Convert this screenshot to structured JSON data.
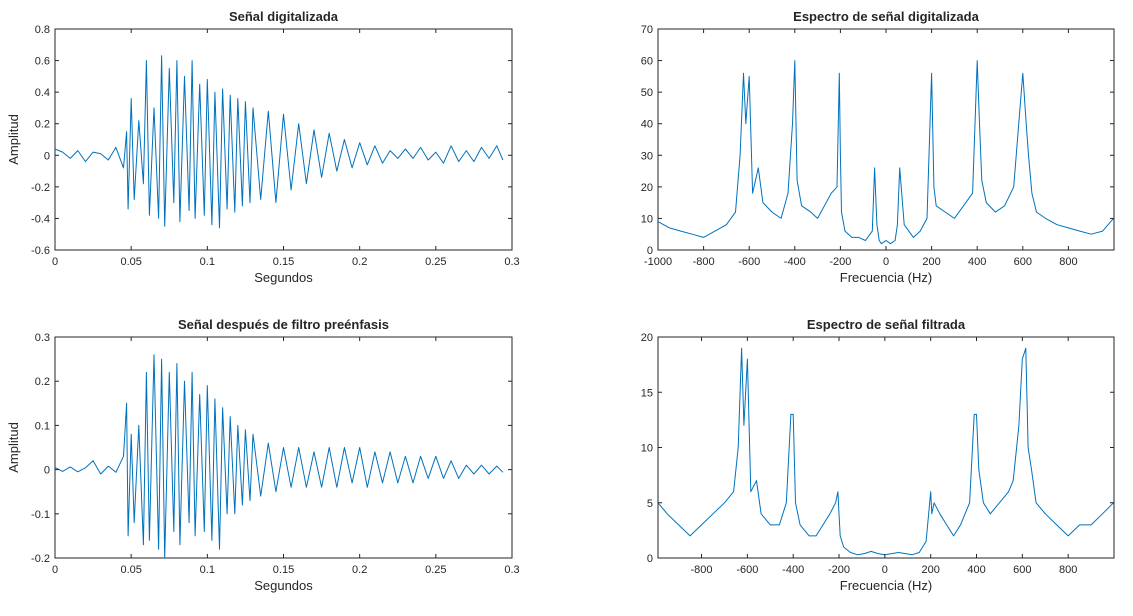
{
  "colors": {
    "line": "#0072BD",
    "axis": "#262626",
    "background": "#ffffff"
  },
  "chart_data": [
    {
      "id": "signal",
      "type": "line",
      "title": "Señal digitalizada",
      "xlabel": "Segundos",
      "ylabel": "Amplitud",
      "xlim": [
        0,
        0.3
      ],
      "ylim": [
        -0.6,
        0.8
      ],
      "xticks": [
        0,
        0.05,
        0.1,
        0.15,
        0.2,
        0.25,
        0.3
      ],
      "xticklabels": [
        "0",
        "0.05",
        "0.1",
        "0.15",
        "0.2",
        "0.25",
        "0.3"
      ],
      "yticks": [
        -0.6,
        -0.4,
        -0.2,
        0,
        0.2,
        0.4,
        0.6,
        0.8
      ],
      "yticklabels": [
        "-0.6",
        "-0.4",
        "-0.2",
        "0",
        "0.2",
        "0.4",
        "0.6",
        "0.8"
      ],
      "series": [
        {
          "x": [
            0,
            0.005,
            0.01,
            0.015,
            0.02,
            0.025,
            0.03,
            0.035,
            0.04,
            0.045,
            0.047,
            0.048,
            0.05,
            0.052,
            0.055,
            0.058,
            0.06,
            0.062,
            0.065,
            0.068,
            0.07,
            0.072,
            0.075,
            0.078,
            0.08,
            0.082,
            0.085,
            0.088,
            0.09,
            0.092,
            0.095,
            0.098,
            0.1,
            0.103,
            0.105,
            0.108,
            0.11,
            0.113,
            0.115,
            0.118,
            0.12,
            0.123,
            0.125,
            0.128,
            0.13,
            0.135,
            0.14,
            0.145,
            0.15,
            0.155,
            0.16,
            0.165,
            0.17,
            0.175,
            0.18,
            0.185,
            0.19,
            0.195,
            0.2,
            0.205,
            0.21,
            0.215,
            0.22,
            0.225,
            0.23,
            0.235,
            0.24,
            0.245,
            0.25,
            0.255,
            0.26,
            0.265,
            0.27,
            0.275,
            0.28,
            0.285,
            0.29,
            0.294
          ],
          "y": [
            0.04,
            0.02,
            -0.02,
            0.03,
            -0.04,
            0.02,
            0.01,
            -0.03,
            0.05,
            -0.08,
            0.15,
            -0.34,
            0.36,
            -0.28,
            0.22,
            -0.18,
            0.6,
            -0.38,
            0.3,
            -0.4,
            0.63,
            -0.45,
            0.55,
            -0.3,
            0.6,
            -0.42,
            0.5,
            -0.35,
            0.6,
            -0.4,
            0.45,
            -0.38,
            0.48,
            -0.44,
            0.4,
            -0.46,
            0.42,
            -0.34,
            0.38,
            -0.36,
            0.36,
            -0.32,
            0.34,
            -0.3,
            0.3,
            -0.28,
            0.28,
            -0.3,
            0.26,
            -0.22,
            0.2,
            -0.18,
            0.16,
            -0.14,
            0.14,
            -0.1,
            0.1,
            -0.08,
            0.08,
            -0.06,
            0.06,
            -0.05,
            0.03,
            -0.02,
            0.04,
            -0.02,
            0.05,
            -0.03,
            0.02,
            -0.05,
            0.06,
            -0.04,
            0.03,
            -0.04,
            0.05,
            -0.02,
            0.06,
            -0.03
          ]
        }
      ]
    },
    {
      "id": "spectrum",
      "type": "line",
      "title": "Espectro de señal digitalizada",
      "xlabel": "Frecuencia (Hz)",
      "ylabel": "",
      "xlim": [
        -1000,
        1000
      ],
      "ylim": [
        0,
        70
      ],
      "xticks": [
        -1000,
        -800,
        -600,
        -400,
        -200,
        0,
        200,
        400,
        600,
        800
      ],
      "xticklabels": [
        "-1000",
        "-800",
        "-600",
        "-400",
        "-200",
        "0",
        "200",
        "400",
        "600",
        "800"
      ],
      "yticks": [
        0,
        10,
        20,
        30,
        40,
        50,
        60,
        70
      ],
      "yticklabels": [
        "0",
        "10",
        "20",
        "30",
        "40",
        "50",
        "60",
        "70"
      ],
      "series": [
        {
          "x": [
            -1000,
            -950,
            -900,
            -850,
            -800,
            -750,
            -700,
            -660,
            -640,
            -625,
            -615,
            -600,
            -585,
            -560,
            -540,
            -500,
            -460,
            -430,
            -410,
            -400,
            -390,
            -370,
            -330,
            -300,
            -270,
            -240,
            -215,
            -205,
            -200,
            -195,
            -180,
            -150,
            -120,
            -90,
            -60,
            -50,
            -40,
            -30,
            -20,
            0,
            20,
            40,
            50,
            60,
            80,
            120,
            150,
            180,
            200,
            210,
            220,
            260,
            300,
            340,
            380,
            400,
            410,
            420,
            440,
            480,
            520,
            560,
            600,
            615,
            625,
            640,
            660,
            700,
            750,
            800,
            850,
            900,
            950,
            998
          ],
          "y": [
            9,
            7,
            6,
            5,
            4,
            6,
            8,
            12,
            30,
            56,
            40,
            55,
            18,
            26,
            15,
            12,
            10,
            18,
            40,
            60,
            22,
            14,
            12,
            10,
            14,
            18,
            20,
            56,
            30,
            12,
            6,
            4,
            4,
            3,
            6,
            26,
            8,
            3,
            2,
            3,
            2,
            3,
            8,
            26,
            8,
            4,
            6,
            10,
            56,
            20,
            14,
            12,
            10,
            14,
            18,
            60,
            40,
            22,
            15,
            12,
            14,
            20,
            56,
            40,
            30,
            18,
            12,
            10,
            8,
            7,
            6,
            5,
            6,
            10
          ]
        }
      ]
    },
    {
      "id": "filtered",
      "type": "line",
      "title": "Señal después de filtro preénfasis",
      "xlabel": "Segundos",
      "ylabel": "Amplitud",
      "xlim": [
        0,
        0.3
      ],
      "ylim": [
        -0.2,
        0.3
      ],
      "xticks": [
        0,
        0.05,
        0.1,
        0.15,
        0.2,
        0.25,
        0.3
      ],
      "xticklabels": [
        "0",
        "0.05",
        "0.1",
        "0.15",
        "0.2",
        "0.25",
        "0.3"
      ],
      "yticks": [
        -0.2,
        -0.1,
        0,
        0.1,
        0.2,
        0.3
      ],
      "yticklabels": [
        "-0.2",
        "-0.1",
        "0",
        "0.1",
        "0.2",
        "0.3"
      ],
      "series": [
        {
          "x": [
            0,
            0.005,
            0.01,
            0.015,
            0.02,
            0.025,
            0.03,
            0.035,
            0.04,
            0.045,
            0.047,
            0.048,
            0.05,
            0.052,
            0.055,
            0.058,
            0.06,
            0.062,
            0.065,
            0.068,
            0.07,
            0.072,
            0.075,
            0.078,
            0.08,
            0.082,
            0.085,
            0.088,
            0.09,
            0.092,
            0.095,
            0.098,
            0.1,
            0.103,
            0.105,
            0.108,
            0.11,
            0.113,
            0.115,
            0.118,
            0.12,
            0.123,
            0.125,
            0.128,
            0.13,
            0.135,
            0.14,
            0.145,
            0.15,
            0.155,
            0.16,
            0.165,
            0.17,
            0.175,
            0.18,
            0.185,
            0.19,
            0.195,
            0.2,
            0.205,
            0.21,
            0.215,
            0.22,
            0.225,
            0.23,
            0.235,
            0.24,
            0.245,
            0.25,
            0.255,
            0.26,
            0.265,
            0.27,
            0.275,
            0.28,
            0.285,
            0.29,
            0.294
          ],
          "y": [
            0.005,
            -0.004,
            0.006,
            -0.005,
            0.004,
            0.02,
            -0.01,
            0.008,
            -0.006,
            0.03,
            0.15,
            -0.15,
            0.08,
            -0.12,
            0.1,
            -0.17,
            0.22,
            -0.16,
            0.26,
            -0.18,
            0.25,
            -0.2,
            0.22,
            -0.14,
            0.24,
            -0.17,
            0.2,
            -0.12,
            0.22,
            -0.15,
            0.17,
            -0.14,
            0.19,
            -0.16,
            0.16,
            -0.18,
            0.14,
            -0.1,
            0.12,
            -0.1,
            0.1,
            -0.08,
            0.09,
            -0.07,
            0.08,
            -0.06,
            0.06,
            -0.05,
            0.05,
            -0.04,
            0.05,
            -0.04,
            0.04,
            -0.04,
            0.05,
            -0.04,
            0.05,
            -0.03,
            0.05,
            -0.04,
            0.04,
            -0.03,
            0.04,
            -0.03,
            0.03,
            -0.03,
            0.03,
            -0.02,
            0.03,
            -0.02,
            0.02,
            -0.02,
            0.01,
            -0.01,
            0.01,
            -0.01,
            0.008,
            -0.006
          ]
        }
      ]
    },
    {
      "id": "filtered-spectrum",
      "type": "line",
      "title": "Espectro de señal filtrada",
      "xlabel": "Frecuencia (Hz)",
      "ylabel": "",
      "xlim": [
        -990,
        1000
      ],
      "ylim": [
        0,
        20
      ],
      "xticks": [
        -800,
        -600,
        -400,
        -200,
        0,
        200,
        400,
        600,
        800
      ],
      "xticklabels": [
        "-800",
        "-600",
        "-400",
        "-200",
        "0",
        "200",
        "400",
        "600",
        "800"
      ],
      "yticks": [
        0,
        5,
        10,
        15,
        20
      ],
      "yticklabels": [
        "0",
        "5",
        "10",
        "15",
        "20"
      ],
      "series": [
        {
          "x": [
            -990,
            -950,
            -900,
            -850,
            -800,
            -750,
            -700,
            -660,
            -640,
            -625,
            -615,
            -600,
            -585,
            -560,
            -540,
            -500,
            -460,
            -430,
            -410,
            -400,
            -390,
            -370,
            -330,
            -300,
            -270,
            -240,
            -215,
            -205,
            -200,
            -195,
            -180,
            -150,
            -120,
            -90,
            -60,
            -30,
            0,
            30,
            60,
            90,
            120,
            150,
            180,
            200,
            205,
            215,
            240,
            270,
            300,
            330,
            370,
            390,
            400,
            410,
            430,
            460,
            500,
            540,
            560,
            585,
            600,
            615,
            625,
            640,
            660,
            700,
            750,
            800,
            850,
            900,
            950,
            998
          ],
          "y": [
            5,
            4,
            3,
            2,
            3,
            4,
            5,
            6,
            10,
            19,
            12,
            18,
            6,
            7,
            4,
            3,
            3,
            5,
            13,
            13,
            5,
            3,
            2,
            2,
            3,
            4,
            5,
            6,
            4,
            2,
            1,
            0.5,
            0.3,
            0.4,
            0.6,
            0.4,
            0.3,
            0.4,
            0.5,
            0.4,
            0.3,
            0.5,
            1.5,
            6,
            4,
            5,
            4,
            3,
            2,
            3,
            5,
            13,
            13,
            8,
            5,
            4,
            5,
            6,
            7,
            12,
            18,
            19,
            10,
            8,
            5,
            4,
            3,
            2,
            3,
            3,
            4,
            5
          ]
        }
      ]
    }
  ]
}
